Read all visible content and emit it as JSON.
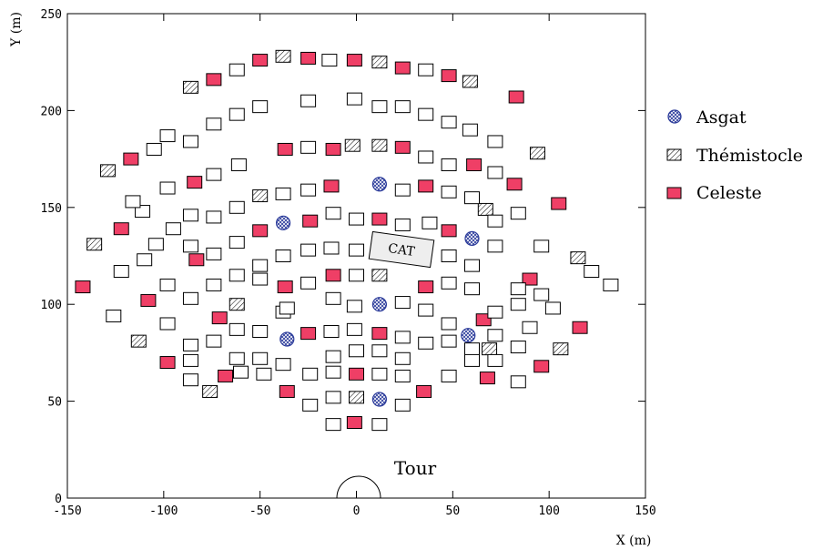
{
  "chart_data": {
    "type": "scatter",
    "title": "",
    "xlabel": "X (m)",
    "ylabel": "Y (m)",
    "xlim": [
      -150,
      150
    ],
    "ylim": [
      0,
      250
    ],
    "xticks": [
      -150,
      -100,
      -50,
      0,
      50,
      100,
      150
    ],
    "yticks": [
      0,
      50,
      100,
      150,
      200,
      250
    ],
    "grid": false,
    "legend_position": "right",
    "colors": {
      "Celeste": "#ef3f66",
      "Asgat": "#3a4fb0",
      "outline": "#000000",
      "empty": "#ffffff"
    },
    "series": [
      {
        "name": "Asgat",
        "marker": "hatched-circle",
        "points": [
          [
            -38,
            142
          ],
          [
            12,
            162
          ],
          [
            60,
            134
          ],
          [
            12,
            100
          ],
          [
            -36,
            82
          ],
          [
            58,
            84
          ],
          [
            12,
            51
          ]
        ]
      },
      {
        "name": "Thémistocle",
        "marker": "hatched-square",
        "points": [
          [
            -86,
            212
          ],
          [
            -38,
            228
          ],
          [
            12,
            225
          ],
          [
            59,
            215
          ],
          [
            -129,
            169
          ],
          [
            -50,
            156
          ],
          [
            -2,
            182
          ],
          [
            12,
            182
          ],
          [
            94,
            178
          ],
          [
            -136,
            131
          ],
          [
            67,
            149
          ],
          [
            115,
            124
          ],
          [
            -62,
            100
          ],
          [
            12,
            115
          ],
          [
            -113,
            81
          ],
          [
            -76,
            55
          ],
          [
            0,
            52
          ],
          [
            69,
            77
          ],
          [
            106,
            77
          ]
        ]
      },
      {
        "name": "Celeste",
        "marker": "filled-square",
        "points": [
          [
            -74,
            216
          ],
          [
            -50,
            226
          ],
          [
            -25,
            227
          ],
          [
            -1,
            226
          ],
          [
            24,
            222
          ],
          [
            48,
            218
          ],
          [
            83,
            207
          ],
          [
            -117,
            175
          ],
          [
            -37,
            180
          ],
          [
            -12,
            180
          ],
          [
            24,
            181
          ],
          [
            61,
            172
          ],
          [
            -122,
            139
          ],
          [
            -84,
            163
          ],
          [
            -13,
            161
          ],
          [
            36,
            161
          ],
          [
            -50,
            138
          ],
          [
            -24,
            143
          ],
          [
            12,
            144
          ],
          [
            48,
            138
          ],
          [
            82,
            162
          ],
          [
            105,
            152
          ],
          [
            -142,
            109
          ],
          [
            -83,
            123
          ],
          [
            -37,
            109
          ],
          [
            -12,
            115
          ],
          [
            36,
            109
          ],
          [
            90,
            113
          ],
          [
            -108,
            102
          ],
          [
            -71,
            93
          ],
          [
            -25,
            85
          ],
          [
            12,
            85
          ],
          [
            -98,
            70
          ],
          [
            -68,
            63
          ],
          [
            -36,
            55
          ],
          [
            0,
            64
          ],
          [
            35,
            55
          ],
          [
            68,
            62
          ],
          [
            -1,
            39
          ],
          [
            66,
            92
          ],
          [
            96,
            68
          ],
          [
            116,
            88
          ]
        ]
      },
      {
        "name": "",
        "marker": "empty-square",
        "points": [
          [
            -62,
            221
          ],
          [
            -14,
            226
          ],
          [
            36,
            221
          ],
          [
            -98,
            187
          ],
          [
            -86,
            184
          ],
          [
            -74,
            193
          ],
          [
            -62,
            198
          ],
          [
            -50,
            202
          ],
          [
            -25,
            205
          ],
          [
            -1,
            206
          ],
          [
            12,
            202
          ],
          [
            24,
            202
          ],
          [
            36,
            198
          ],
          [
            48,
            194
          ],
          [
            59,
            190
          ],
          [
            72,
            184
          ],
          [
            -105,
            180
          ],
          [
            -111,
            148
          ],
          [
            -98,
            160
          ],
          [
            -74,
            167
          ],
          [
            -61,
            172
          ],
          [
            -25,
            181
          ],
          [
            36,
            176
          ],
          [
            48,
            172
          ],
          [
            72,
            168
          ],
          [
            -116,
            153
          ],
          [
            -104,
            131
          ],
          [
            -95,
            139
          ],
          [
            -86,
            146
          ],
          [
            -74,
            145
          ],
          [
            -62,
            150
          ],
          [
            -38,
            157
          ],
          [
            -25,
            159
          ],
          [
            24,
            159
          ],
          [
            48,
            158
          ],
          [
            60,
            155
          ],
          [
            72,
            143
          ],
          [
            84,
            147
          ],
          [
            96,
            130
          ],
          [
            -110,
            123
          ],
          [
            -122,
            117
          ],
          [
            -98,
            110
          ],
          [
            -86,
            130
          ],
          [
            -74,
            126
          ],
          [
            -62,
            132
          ],
          [
            -12,
            147
          ],
          [
            0,
            144
          ],
          [
            -38,
            125
          ],
          [
            -25,
            128
          ],
          [
            -13,
            129
          ],
          [
            0,
            128
          ],
          [
            24,
            141
          ],
          [
            38,
            142
          ],
          [
            -62,
            115
          ],
          [
            -50,
            120
          ],
          [
            -74,
            110
          ],
          [
            -86,
            103
          ],
          [
            -98,
            90
          ],
          [
            -86,
            79
          ],
          [
            -50,
            113
          ],
          [
            -25,
            111
          ],
          [
            0,
            115
          ],
          [
            48,
            125
          ],
          [
            60,
            120
          ],
          [
            72,
            130
          ],
          [
            48,
            111
          ],
          [
            60,
            108
          ],
          [
            84,
            108
          ],
          [
            96,
            105
          ],
          [
            102,
            98
          ],
          [
            132,
            110
          ],
          [
            122,
            117
          ],
          [
            -126,
            94
          ],
          [
            -74,
            81
          ],
          [
            -50,
            86
          ],
          [
            -62,
            87
          ],
          [
            -50,
            72
          ],
          [
            -38,
            96
          ],
          [
            -12,
            103
          ],
          [
            24,
            101
          ],
          [
            36,
            97
          ],
          [
            48,
            90
          ],
          [
            72,
            96
          ],
          [
            84,
            100
          ],
          [
            90,
            88
          ],
          [
            -38,
            69
          ],
          [
            -36,
            98
          ],
          [
            -13,
            86
          ],
          [
            -1,
            87
          ],
          [
            24,
            83
          ],
          [
            -12,
            73
          ],
          [
            0,
            76
          ],
          [
            12,
            76
          ],
          [
            24,
            72
          ],
          [
            36,
            80
          ],
          [
            48,
            63
          ],
          [
            -1,
            99
          ],
          [
            48,
            81
          ],
          [
            84,
            78
          ],
          [
            84,
            60
          ],
          [
            72,
            84
          ],
          [
            60,
            77
          ],
          [
            60,
            71
          ],
          [
            72,
            71
          ],
          [
            -86,
            71
          ],
          [
            -62,
            72
          ],
          [
            -24,
            64
          ],
          [
            -12,
            65
          ],
          [
            12,
            64
          ],
          [
            24,
            63
          ],
          [
            -86,
            61
          ],
          [
            -60,
            65
          ],
          [
            -48,
            64
          ],
          [
            -24,
            48
          ],
          [
            -12,
            52
          ],
          [
            24,
            48
          ],
          [
            -12,
            38
          ],
          [
            12,
            38
          ]
        ]
      }
    ],
    "annotations": [
      {
        "text": "CAT",
        "x": 23,
        "y": 129,
        "shape": "rotated-box"
      },
      {
        "text": "Tour",
        "x": 31,
        "y": 15,
        "shape": "semicircle-at-origin"
      }
    ]
  },
  "legend": [
    {
      "label": "Asgat",
      "marker": "hatched-circle"
    },
    {
      "label": "Thémistocle",
      "marker": "hatched-square"
    },
    {
      "label": "Celeste",
      "marker": "filled-square"
    }
  ]
}
